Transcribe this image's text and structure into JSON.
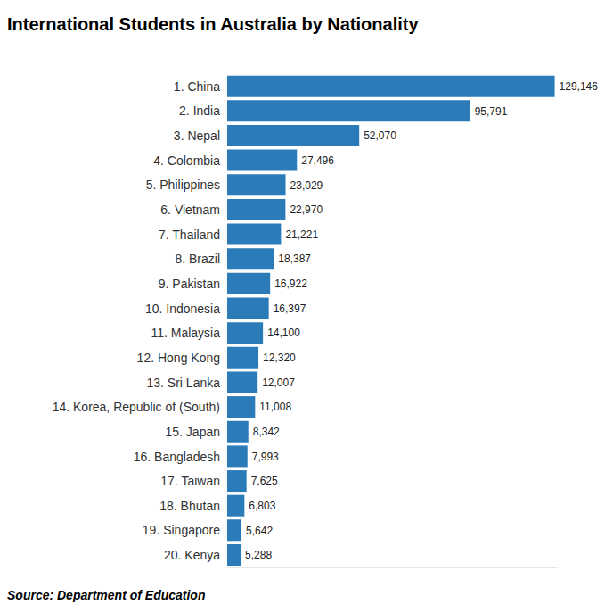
{
  "chart_data": {
    "type": "bar",
    "title": "International Students in Australia by Nationality",
    "source": "Source: Department of Education",
    "orientation": "horizontal",
    "categories": [
      "1. China",
      "2. India",
      "3. Nepal",
      "4. Colombia",
      "5. Philippines",
      "6. Vietnam",
      "7. Thailand",
      "8. Brazil",
      "9. Pakistan",
      "10. Indonesia",
      "11. Malaysia",
      "12. Hong Kong",
      "13. Sri Lanka",
      "14. Korea, Republic of (South)",
      "15. Japan",
      "16. Bangladesh",
      "17. Taiwan",
      "18. Bhutan",
      "19. Singapore",
      "20. Kenya"
    ],
    "values": [
      129146,
      95791,
      52070,
      27496,
      23029,
      22970,
      21221,
      18387,
      16922,
      16397,
      14100,
      12320,
      12007,
      11008,
      8342,
      7993,
      7625,
      6803,
      5642,
      5288
    ],
    "value_labels": [
      "129,146",
      "95,791",
      "52,070",
      "27,496",
      "23,029",
      "22,970",
      "21,221",
      "18,387",
      "16,922",
      "16,397",
      "14,100",
      "12,320",
      "12,007",
      "11,008",
      "8,342",
      "7,993",
      "7,625",
      "6,803",
      "5,642",
      "5,288"
    ],
    "color": "#2b7bb9",
    "xlim": [
      0,
      130000
    ],
    "data_labels": true,
    "tick_labels": "y",
    "grid": false
  }
}
